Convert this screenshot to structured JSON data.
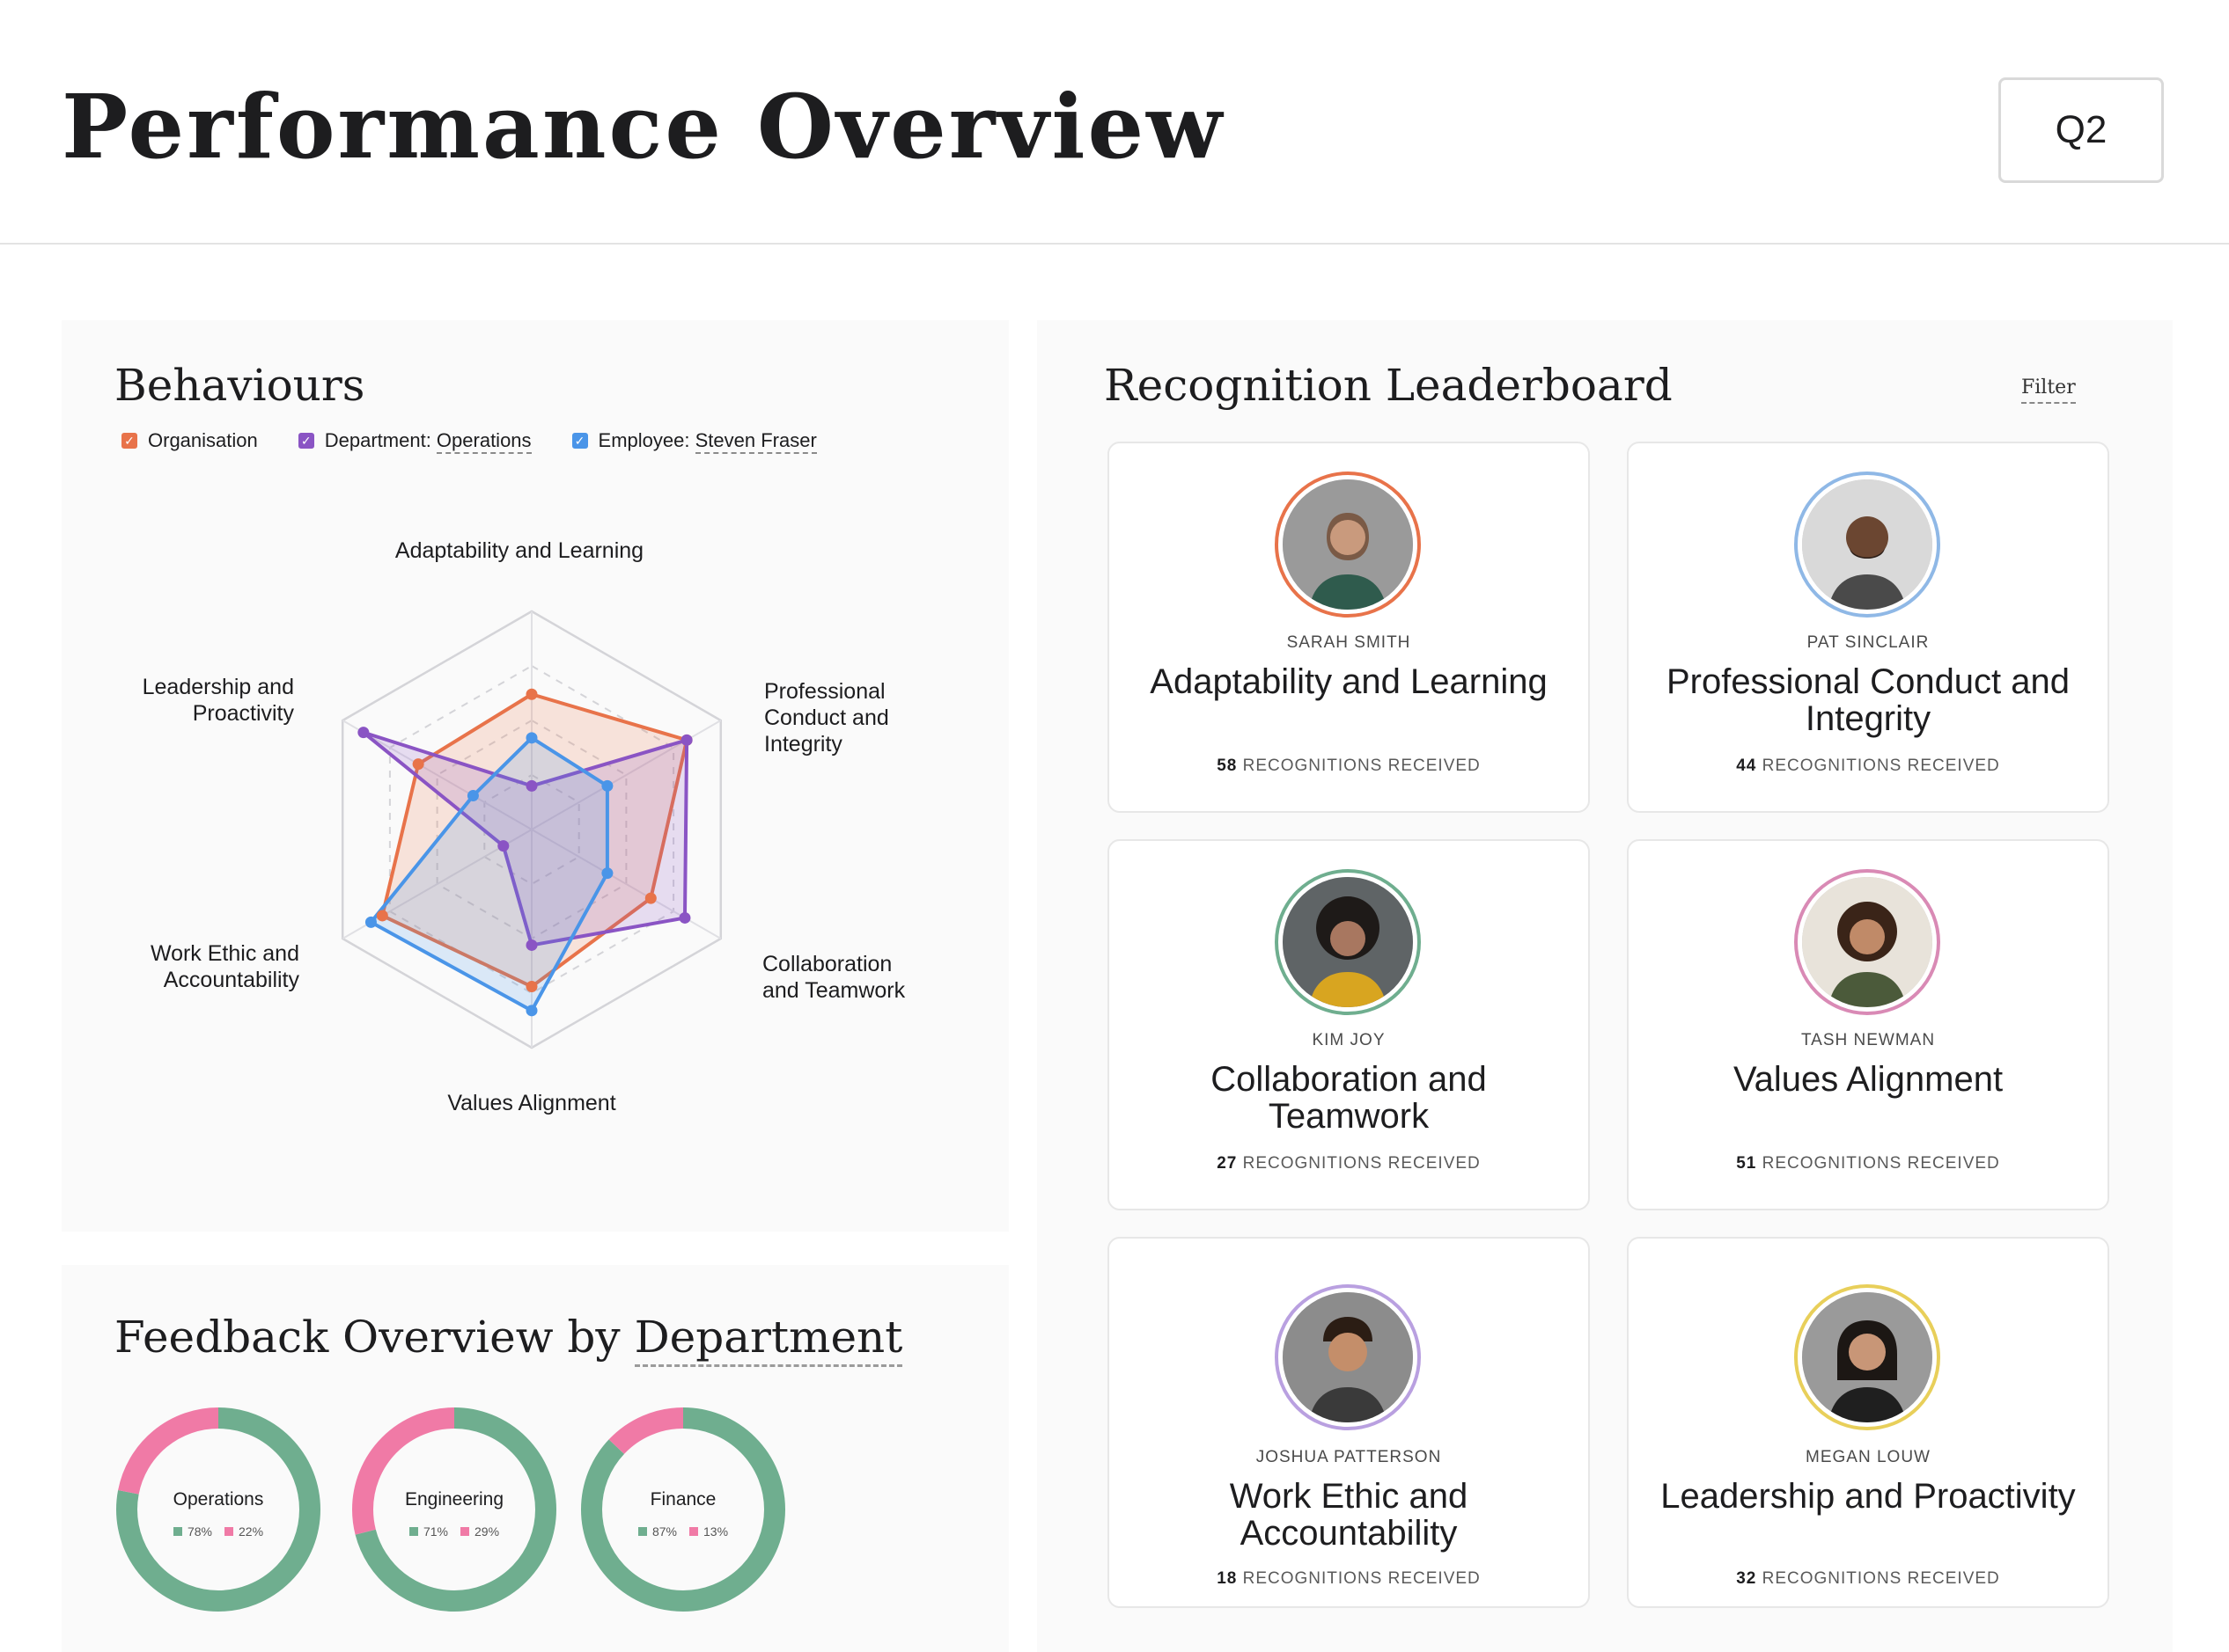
{
  "header": {
    "title": "Performance Overview",
    "period_button": "Q2"
  },
  "behaviours": {
    "title": "Behaviours",
    "legend": [
      {
        "key": "org",
        "label": "Organisation",
        "value": "",
        "color": "#e8734a"
      },
      {
        "key": "dept",
        "label": "Department: ",
        "value": "Operations",
        "color": "#8a54c4"
      },
      {
        "key": "emp",
        "label": "Employee: ",
        "value": "Steven Fraser",
        "color": "#4a95e8"
      }
    ]
  },
  "chart_data": {
    "type": "radar",
    "axes": [
      "Adaptability and Learning",
      "Professional Conduct and Integrity",
      "Collaboration and Teamwork",
      "Values Alignment",
      "Work Ethic and Accountability",
      "Leadership and Proactivity"
    ],
    "max": 100,
    "rings": 4,
    "series": [
      {
        "name": "Organisation",
        "color": "#e8734a",
        "values": [
          62,
          82,
          63,
          72,
          79,
          60
        ]
      },
      {
        "name": "Department: Operations",
        "color": "#8a54c4",
        "values": [
          20,
          82,
          81,
          53,
          15,
          89
        ]
      },
      {
        "name": "Employee: Steven Fraser",
        "color": "#4a95e8",
        "values": [
          42,
          40,
          40,
          83,
          85,
          31
        ]
      }
    ]
  },
  "feedback": {
    "title_prefix": "Feedback Overview by ",
    "title_link": "Department",
    "departments": [
      {
        "name": "Operations",
        "positive": 78,
        "negative": 22,
        "positive_label": "78%",
        "negative_label": "22%"
      },
      {
        "name": "Engineering",
        "positive": 71,
        "negative": 29,
        "positive_label": "71%",
        "negative_label": "29%"
      },
      {
        "name": "Finance",
        "positive": 87,
        "negative": 13,
        "positive_label": "87%",
        "negative_label": "13%"
      }
    ],
    "colors": {
      "positive": "#6fae8f",
      "negative": "#f07aa6"
    }
  },
  "leaderboard": {
    "title": "Recognition Leaderboard",
    "filter_label": "Filter",
    "count_suffix": "RECOGNITIONS RECEIVED",
    "cards": [
      {
        "name": "SARAH SMITH",
        "behaviour": "Adaptability and Learning",
        "count": "58",
        "ring_color": "#e8734a"
      },
      {
        "name": "PAT SINCLAIR",
        "behaviour": "Professional Conduct and Integrity",
        "count": "44",
        "ring_color": "#8fb8e6"
      },
      {
        "name": "KIM JOY",
        "behaviour": "Collaboration and Teamwork",
        "count": "27",
        "ring_color": "#6fae8f"
      },
      {
        "name": "TASH NEWMAN",
        "behaviour": "Values Alignment",
        "count": "51",
        "ring_color": "#d98ab5"
      },
      {
        "name": "JOSHUA PATTERSON",
        "behaviour": "Work Ethic and Accountability",
        "count": "18",
        "ring_color": "#b9a0e0"
      },
      {
        "name": "MEGAN LOUW",
        "behaviour": "Leadership and Proactivity",
        "count": "32",
        "ring_color": "#e8cf5a"
      }
    ]
  }
}
